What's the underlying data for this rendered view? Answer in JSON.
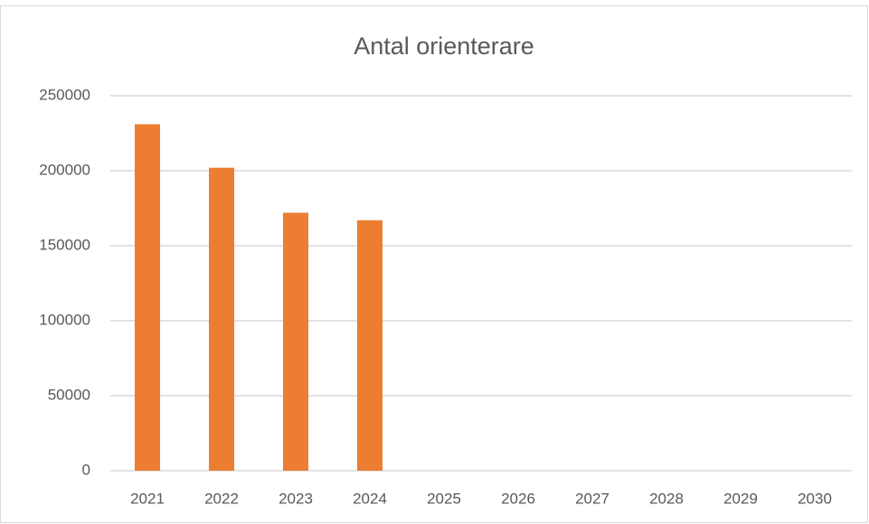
{
  "chart_data": {
    "type": "bar",
    "title": "Antal orienterare",
    "categories": [
      "2021",
      "2022",
      "2023",
      "2024",
      "2025",
      "2026",
      "2027",
      "2028",
      "2029",
      "2030"
    ],
    "values": [
      231000,
      202000,
      172000,
      167000,
      null,
      null,
      null,
      null,
      null,
      null
    ],
    "color": "#ed7d31",
    "ylim": [
      0,
      250000
    ],
    "yticks": [
      0,
      50000,
      100000,
      150000,
      200000,
      250000
    ],
    "grid": true
  }
}
